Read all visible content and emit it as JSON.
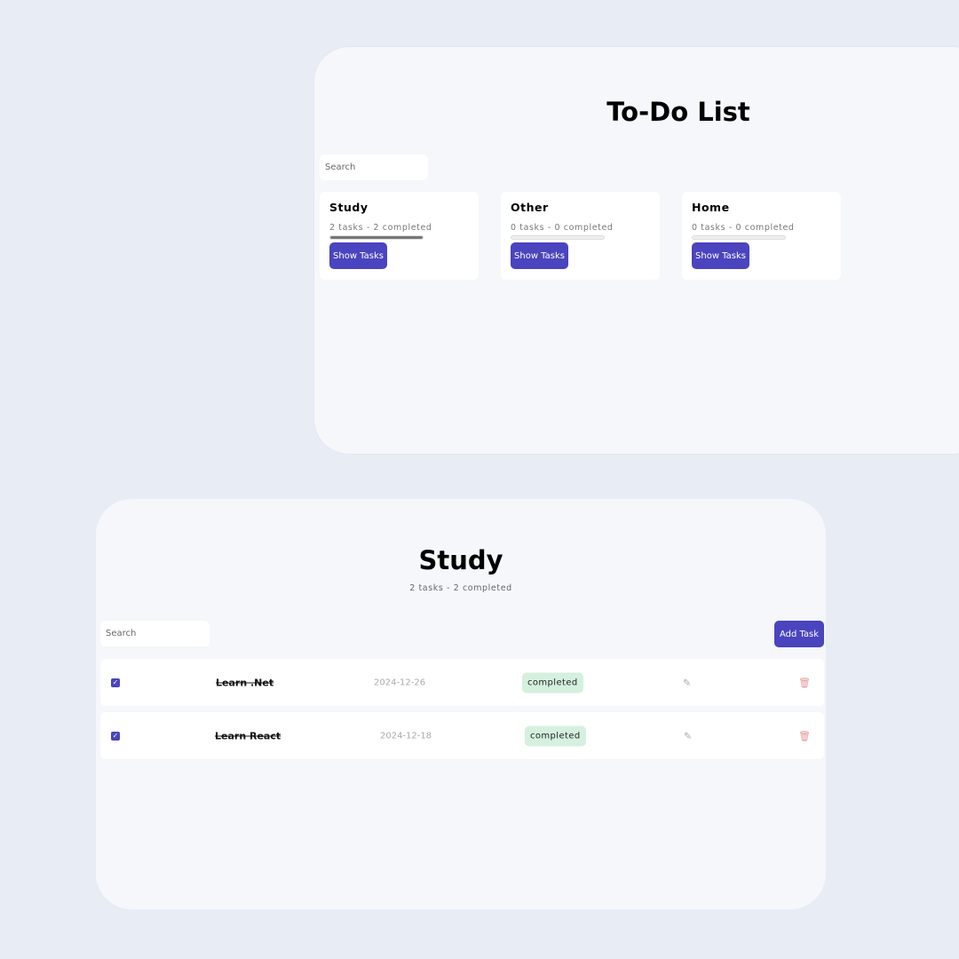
{
  "overview": {
    "title": "To-Do List",
    "search_placeholder": "Search",
    "categories": [
      {
        "name": "Study",
        "summary": "2 tasks - 2 completed",
        "progress": 1.0,
        "button": "Show Tasks"
      },
      {
        "name": "Other",
        "summary": "0 tasks - 0 completed",
        "progress": 0,
        "button": "Show Tasks"
      },
      {
        "name": "Home",
        "summary": "0 tasks - 0 completed",
        "progress": 0,
        "button": "Show Tasks"
      }
    ]
  },
  "detail": {
    "title": "Study",
    "summary": "2 tasks - 2 completed",
    "search_placeholder": "Search",
    "add_button": "Add Task",
    "tasks": [
      {
        "name": "Learn .Net",
        "date": "2024-12-26",
        "status": "completed",
        "checked": true
      },
      {
        "name": "Learn React",
        "date": "2024-12-18",
        "status": "completed",
        "checked": true
      }
    ]
  },
  "colors": {
    "accent": "#4a44bf",
    "badge": "#d5f0df",
    "delete": "#e59a9a"
  }
}
